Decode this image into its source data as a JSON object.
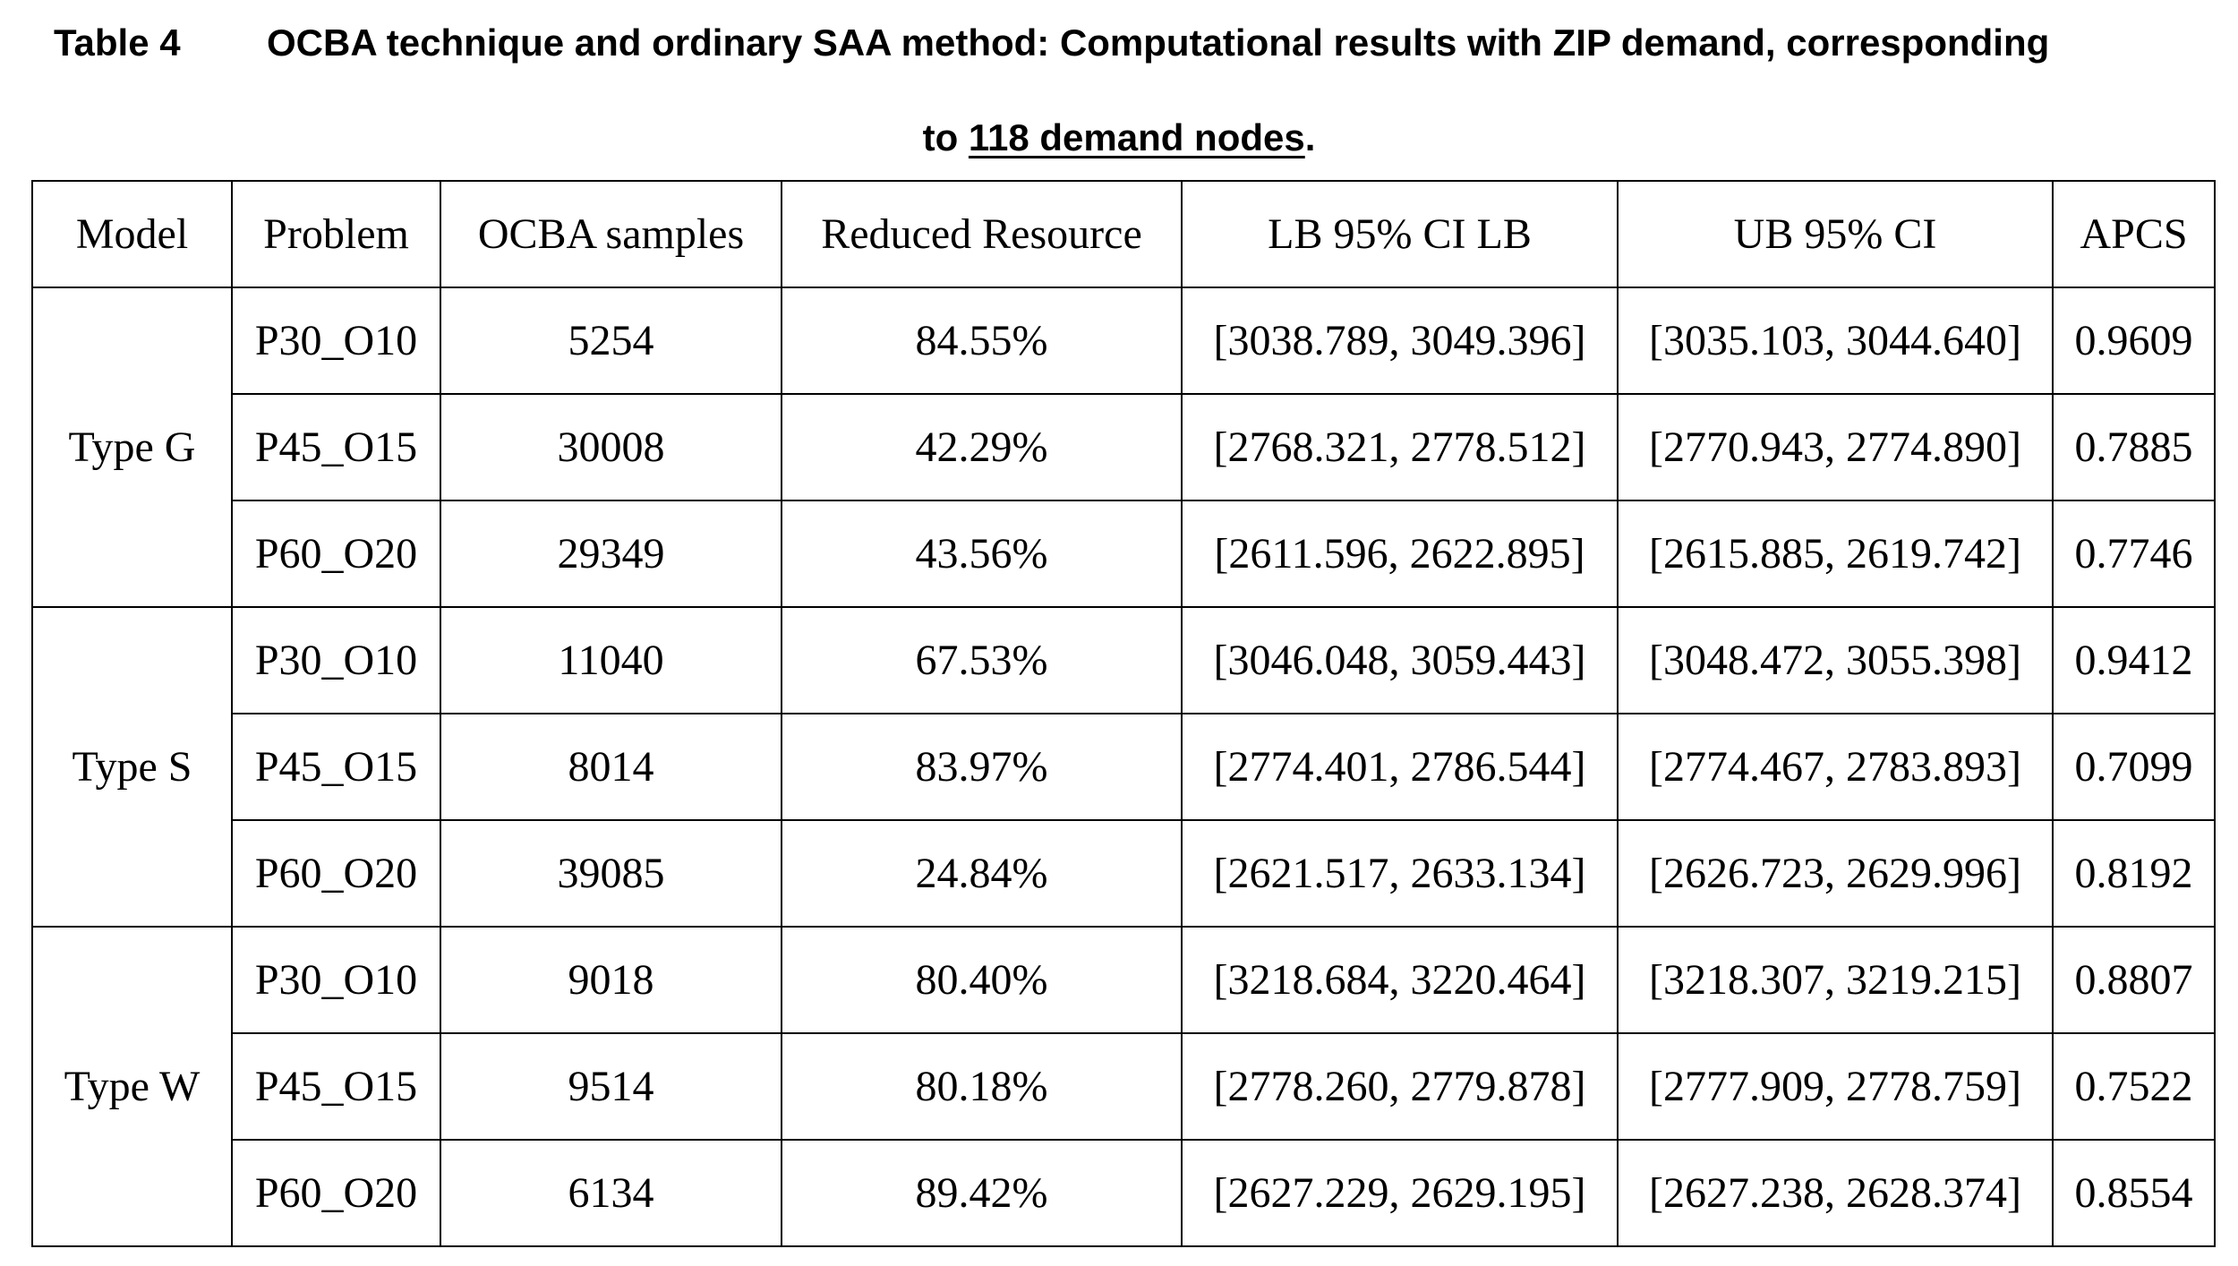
{
  "title": {
    "label": "Table 4",
    "parts": [
      "OCBA technique and ordinary SAA method: Computational results with ZIP demand, corresponding",
      "to",
      "118 demand nodes",
      "."
    ]
  },
  "table": {
    "header": [
      "Model",
      "Problem",
      "OCBA samples",
      "Reduced Resource",
      "LB 95% CI LB",
      "UB 95% CI",
      "APCS"
    ],
    "groups": [
      {
        "model": "Type G",
        "rows": [
          [
            "P30_O10",
            5254,
            "84.55%",
            "[3038.789, 3049.396]",
            "[3035.103, 3044.640]",
            0.9609
          ],
          [
            "P45_O15",
            30008,
            "42.29%",
            "[2768.321, 2778.512]",
            "[2770.943, 2774.890]",
            0.7885
          ],
          [
            "P60_O20",
            29349,
            "43.56%",
            "[2611.596, 2622.895]",
            "[2615.885, 2619.742]",
            0.7746
          ]
        ]
      },
      {
        "model": "Type S",
        "rows": [
          [
            "P30_O10",
            11040,
            "67.53%",
            "[3046.048, 3059.443]",
            "[3048.472, 3055.398]",
            0.9412
          ],
          [
            "P45_O15",
            8014,
            "83.97%",
            "[2774.401, 2786.544]",
            "[2774.467, 2783.893]",
            0.7099
          ],
          [
            "P60_O20",
            39085,
            "24.84%",
            "[2621.517, 2633.134]",
            "[2626.723, 2629.996]",
            0.8192
          ]
        ]
      },
      {
        "model": "Type W",
        "rows": [
          [
            "P30_O10",
            9018,
            "80.40%",
            "[3218.684, 3220.464]",
            "[3218.307, 3219.215]",
            0.8807
          ],
          [
            "P45_O15",
            9514,
            "80.18%",
            "[2778.260, 2779.878]",
            "[2777.909, 2778.759]",
            0.7522
          ],
          [
            "P60_O20",
            6134,
            "89.42%",
            "[2627.229, 2629.195]",
            "[2627.238, 2628.374]",
            0.8554
          ]
        ]
      }
    ]
  }
}
